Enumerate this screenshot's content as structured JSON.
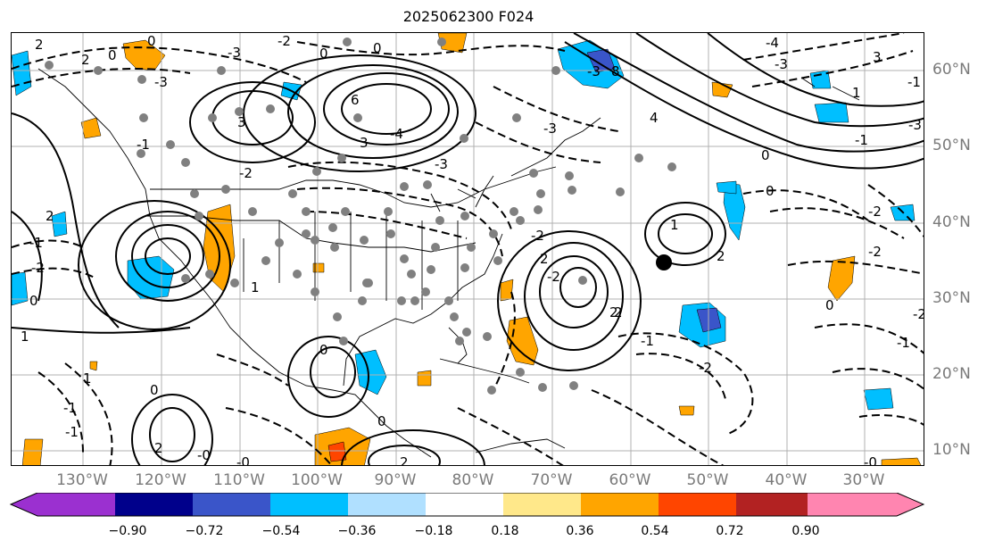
{
  "title": "2025062300 F024",
  "longitude_labels": [
    "130°W",
    "120°W",
    "110°W",
    "100°W",
    "90°W",
    "80°W",
    "70°W",
    "60°W",
    "50°W",
    "40°W",
    "30°W"
  ],
  "latitude_labels": [
    "60°N",
    "50°N",
    "40°N",
    "30°N",
    "20°N",
    "10°N"
  ],
  "colorbar": {
    "tick_labels": [
      "−0.90",
      "−0.72",
      "−0.54",
      "−0.36",
      "−0.18",
      "0.18",
      "0.36",
      "0.54",
      "0.72",
      "0.90"
    ],
    "colors": [
      "#9b30d0",
      "#00008b",
      "#3a55c9",
      "#00bfff",
      "#b0e0ff",
      "#ffffff",
      "#ffe88a",
      "#ffa500",
      "#ff4500",
      "#b22222",
      "#ff85b0"
    ]
  },
  "contour_labels": [
    "2",
    "2",
    "0",
    "0",
    "-2",
    "-3",
    "-3",
    "6",
    "3",
    "3",
    "-2",
    "-4",
    "-3",
    "0",
    "-3",
    "-3",
    "8",
    "4",
    "3",
    "-4",
    "-3",
    "1",
    "-1",
    "0",
    "-2",
    "1",
    "2",
    "0",
    "-1",
    "-2",
    "-2",
    "-1",
    "-2",
    "-2",
    "0",
    "2",
    "-0",
    "-1",
    "-2",
    "0",
    "1",
    "0",
    "-0",
    "-1",
    "0",
    "1",
    "2",
    "-0",
    "2",
    "2",
    "-2",
    "2",
    "1",
    "0",
    "-1",
    "2",
    "-1",
    "0",
    "-3",
    "-1"
  ],
  "marker": {
    "description": "storm position",
    "color": "#000000"
  }
}
